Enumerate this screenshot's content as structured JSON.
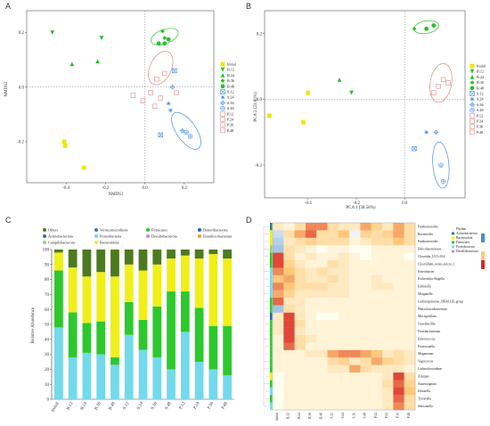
{
  "panels": {
    "A": {
      "letter": "A",
      "xlabel": "NMDS1",
      "ylabel": "NMDS2"
    },
    "B": {
      "letter": "B",
      "xlabel": "PCA 1 (38.58%)",
      "ylabel": "PCA 2 (23.80%)"
    },
    "C": {
      "letter": "C",
      "ylabel": "Relative Abundance"
    },
    "D": {
      "letter": "D"
    }
  },
  "colors": {
    "initial": "#f2e600",
    "B": "#2bbf2b",
    "S": "#4a90d9",
    "P": "#d98a8a",
    "c_others": "#4d7a20",
    "c_verruco": "#3a74b8",
    "c_firmicutes": "#2ec82e",
    "c_deferri": "#2b5cc4",
    "c_actino": "#2a7f7f",
    "c_proteo": "#74d9ea",
    "c_desulfo": "#c58ad9",
    "c_emodisc": "#e89b3a",
    "c_campy": "#9acd6a",
    "c_bacteroid": "#f0ef1a"
  },
  "group_legend": [
    {
      "label": "Initial",
      "group": "initial",
      "shape": "square"
    },
    {
      "label": "B.12",
      "group": "B",
      "shape": "tri-down"
    },
    {
      "label": "B.24",
      "group": "B",
      "shape": "tri-up"
    },
    {
      "label": "B.36",
      "group": "B",
      "shape": "diamond"
    },
    {
      "label": "B.48",
      "group": "B",
      "shape": "circle"
    },
    {
      "label": "S.12",
      "group": "S",
      "shape": "x-square"
    },
    {
      "label": "S.24",
      "group": "S",
      "shape": "asterisk"
    },
    {
      "label": "S.36",
      "group": "S",
      "shape": "diamond-plus"
    },
    {
      "label": "S.48",
      "group": "S",
      "shape": "circle-plus"
    },
    {
      "label": "P.12",
      "group": "P",
      "shape": "square-o"
    },
    {
      "label": "P.24",
      "group": "P",
      "shape": "square-o"
    },
    {
      "label": "P.36",
      "group": "P",
      "shape": "square-o"
    },
    {
      "label": "P.48",
      "group": "P",
      "shape": "square-o"
    }
  ],
  "chart_data": [
    {
      "panel": "A",
      "type": "scatter",
      "xlabel": "NMDS1",
      "ylabel": "NMDS2",
      "xlim": [
        -0.6,
        0.35
      ],
      "ylim": [
        -0.35,
        0.28
      ],
      "xticks": [
        -0.4,
        -0.2,
        0.0,
        0.2
      ],
      "yticks": [
        -0.2,
        0.0,
        0.2
      ],
      "points": [
        {
          "label": "Initial",
          "x": -0.41,
          "y": -0.2
        },
        {
          "label": "Initial",
          "x": -0.405,
          "y": -0.215
        },
        {
          "label": "Initial",
          "x": -0.31,
          "y": -0.295
        },
        {
          "label": "B.12",
          "x": -0.47,
          "y": 0.2
        },
        {
          "label": "B.12",
          "x": -0.22,
          "y": 0.18
        },
        {
          "label": "B.24",
          "x": -0.37,
          "y": 0.085
        },
        {
          "label": "B.24",
          "x": -0.24,
          "y": 0.095
        },
        {
          "label": "B.36",
          "x": 0.09,
          "y": 0.205
        },
        {
          "label": "B.36",
          "x": 0.1,
          "y": 0.18
        },
        {
          "label": "B.48",
          "x": 0.07,
          "y": 0.16
        },
        {
          "label": "B.48",
          "x": 0.1,
          "y": 0.16
        },
        {
          "label": "B.48",
          "x": 0.12,
          "y": 0.175
        },
        {
          "label": "S.12",
          "x": 0.15,
          "y": 0.06
        },
        {
          "label": "S.12",
          "x": 0.08,
          "y": -0.175
        },
        {
          "label": "S.24",
          "x": 0.13,
          "y": -0.085
        },
        {
          "label": "S.24",
          "x": 0.12,
          "y": -0.06
        },
        {
          "label": "S.36",
          "x": 0.14,
          "y": 0.0
        },
        {
          "label": "S.36",
          "x": 0.19,
          "y": -0.16
        },
        {
          "label": "S.48",
          "x": 0.21,
          "y": -0.165
        },
        {
          "label": "S.48",
          "x": 0.23,
          "y": -0.18
        },
        {
          "label": "P.12",
          "x": 0.1,
          "y": 0.05
        },
        {
          "label": "P.12",
          "x": 0.06,
          "y": 0.03
        },
        {
          "label": "P.24",
          "x": -0.06,
          "y": -0.03
        },
        {
          "label": "P.24",
          "x": -0.01,
          "y": -0.05
        },
        {
          "label": "P.36",
          "x": 0.03,
          "y": -0.02
        },
        {
          "label": "P.36",
          "x": 0.05,
          "y": -0.07
        },
        {
          "label": "P.48",
          "x": 0.08,
          "y": -0.04
        },
        {
          "label": "P.48",
          "x": 0.16,
          "y": -0.02
        }
      ]
    },
    {
      "panel": "B",
      "type": "scatter",
      "xlabel": "PCA 1 (38.58%)",
      "ylabel": "PCA 2 (23.80%)",
      "xlim": [
        -0.58,
        0.25
      ],
      "ylim": [
        -0.3,
        0.27
      ],
      "xticks": [
        -0.4,
        -0.2,
        0.0
      ],
      "yticks": [
        -0.2,
        0.0,
        0.2
      ],
      "points": [
        {
          "label": "Initial",
          "x": -0.56,
          "y": -0.05
        },
        {
          "label": "Initial",
          "x": -0.4,
          "y": 0.02
        },
        {
          "label": "Initial",
          "x": -0.42,
          "y": -0.07
        },
        {
          "label": "B.12",
          "x": -0.22,
          "y": 0.02
        },
        {
          "label": "B.24",
          "x": -0.27,
          "y": 0.06
        },
        {
          "label": "B.36",
          "x": 0.04,
          "y": 0.215
        },
        {
          "label": "B.48",
          "x": 0.09,
          "y": 0.215
        },
        {
          "label": "B.48",
          "x": 0.12,
          "y": 0.225
        },
        {
          "label": "S.12",
          "x": 0.04,
          "y": -0.15
        },
        {
          "label": "S.24",
          "x": 0.09,
          "y": -0.1
        },
        {
          "label": "S.36",
          "x": 0.13,
          "y": -0.1
        },
        {
          "label": "S.48",
          "x": 0.15,
          "y": -0.2
        },
        {
          "label": "S.48",
          "x": 0.16,
          "y": -0.25
        },
        {
          "label": "P.12",
          "x": 0.16,
          "y": 0.06
        },
        {
          "label": "P.24",
          "x": 0.14,
          "y": 0.04
        },
        {
          "label": "P.36",
          "x": 0.12,
          "y": 0.02
        },
        {
          "label": "P.48",
          "x": 0.18,
          "y": 0.05
        }
      ]
    },
    {
      "panel": "C",
      "type": "bar",
      "stacked": true,
      "ylabel": "Relative Abundance",
      "ylim": [
        0,
        100
      ],
      "yticks": [
        0,
        10,
        20,
        30,
        40,
        50,
        60,
        70,
        80,
        90,
        100
      ],
      "categories": [
        "Initial",
        "B.12",
        "B.24",
        "B.36",
        "B.48",
        "S.12",
        "S.24",
        "S.36",
        "S.48",
        "P.12",
        "P.24",
        "P.36",
        "P.48"
      ],
      "legend": [
        "Others",
        "Verrucomicrobiota",
        "Firmicutes",
        "Deferribacterota",
        "Actinobacteriota",
        "Proteobacteria",
        "Desulfobacterota",
        "Emodiscobacterota",
        "Campilobacterota",
        "Bacteroidota"
      ],
      "series": [
        {
          "name": "Proteobacteria",
          "color_key": "c_proteo",
          "values": [
            48,
            28,
            31,
            30,
            23,
            43,
            33,
            28,
            20,
            45,
            25,
            20,
            16
          ]
        },
        {
          "name": "Firmicutes",
          "color_key": "c_firmicutes",
          "values": [
            38,
            30,
            20,
            22,
            5,
            22,
            20,
            34,
            52,
            27,
            36,
            29,
            33
          ]
        },
        {
          "name": "Bacteroidota",
          "color_key": "c_bacteroid",
          "values": [
            12,
            30,
            31,
            33,
            54,
            25,
            33,
            28,
            22,
            24,
            33,
            48,
            45
          ]
        },
        {
          "name": "Others",
          "color_key": "c_others",
          "values": [
            2,
            12,
            18,
            15,
            18,
            10,
            14,
            10,
            6,
            4,
            6,
            3,
            6
          ]
        }
      ]
    },
    {
      "panel": "D",
      "type": "heatmap",
      "legend_items": [
        "Phylum",
        "Actinobacteriota",
        "Bacteroidota",
        "Firmicutes",
        "Proteobacteria",
        "Desulfobacterota"
      ],
      "columns": [
        "Initial",
        "B.12",
        "B.24",
        "B.36",
        "B.48",
        "S.12",
        "S.24",
        "S.36",
        "S.48",
        "P.12",
        "P.24",
        "P.36",
        "P.48"
      ],
      "rows": [
        "Parabacteroides",
        "Bacteroides",
        "Parabacteroides",
        "Helicobacteraceae",
        "Clostridia_UCG-014",
        "Clostridium_sensu_stricto_1",
        "Enterobacter",
        "Escherichia-Shigella",
        "Klebsiella",
        "Morganella",
        "Lachnospiraceae_NK4A136_group",
        "Phascolarctobacterium",
        "Mucispirillum",
        "Cuneibacillus",
        "Proteiniclasticum",
        "Enterococcus",
        "Proteocatella",
        "Megamonas",
        "Vagococcus",
        "Lachnoclostridium",
        "Alistipes",
        "Anaerotignum",
        "Eikenella",
        "Tyzzerella",
        "Shewanella"
      ],
      "matrix": [
        [
          0.2,
          0.1,
          0.3,
          0.7,
          0.7,
          0.3,
          0.2,
          0.2,
          0.6,
          0.4,
          0.2,
          0.6,
          0.3
        ],
        [
          -0.3,
          0.3,
          0.6,
          0.8,
          0.3,
          0.3,
          0.5,
          -0.1,
          0.4,
          0.3,
          0.4,
          0.6,
          0.3
        ],
        [
          -0.4,
          0.2,
          0.3,
          0.4,
          0.3,
          0.3,
          0.3,
          0.1,
          0.2,
          0.3,
          0.3,
          0.5,
          0.3
        ],
        [
          -0.5,
          0.3,
          0.2,
          0.1,
          0.0,
          0.1,
          0.1,
          0.0,
          0.0,
          0.1,
          0.1,
          0.1,
          0.1
        ],
        [
          0.9,
          0.3,
          0.1,
          0.2,
          0.1,
          0.1,
          0.2,
          0.1,
          0.0,
          0.1,
          0.1,
          0.1,
          0.0
        ],
        [
          0.9,
          0.4,
          0.2,
          0.1,
          0.1,
          0.3,
          0.2,
          0.1,
          0.1,
          0.1,
          0.1,
          0.1,
          0.1
        ],
        [
          0.7,
          0.5,
          0.3,
          0.2,
          0.3,
          0.2,
          0.2,
          0.1,
          0.1,
          0.1,
          0.1,
          0.1,
          0.1
        ],
        [
          0.5,
          0.6,
          0.3,
          0.2,
          0.2,
          0.3,
          0.2,
          0.1,
          0.1,
          0.2,
          0.1,
          0.1,
          0.1
        ],
        [
          0.7,
          0.5,
          0.3,
          0.3,
          0.3,
          0.2,
          0.2,
          0.1,
          0.1,
          0.2,
          0.2,
          0.1,
          0.1
        ],
        [
          0.6,
          0.4,
          0.2,
          0.2,
          0.2,
          0.2,
          0.2,
          0.1,
          0.1,
          0.1,
          0.1,
          0.1,
          0.1
        ],
        [
          0.8,
          0.2,
          0.2,
          0.1,
          0.1,
          0.1,
          0.1,
          0.1,
          0.1,
          0.1,
          0.1,
          0.1,
          0.1
        ],
        [
          -0.5,
          0.3,
          0.2,
          0.1,
          0.1,
          0.1,
          0.1,
          0.1,
          0.1,
          0.1,
          0.1,
          0.1,
          0.1
        ],
        [
          0.2,
          0.9,
          0.2,
          0.1,
          0.0,
          0.0,
          0.1,
          0.1,
          0.1,
          0.1,
          0.1,
          0.1,
          0.1
        ],
        [
          0.2,
          0.9,
          0.3,
          0.1,
          0.1,
          0.1,
          0.1,
          0.1,
          0.1,
          0.1,
          0.1,
          0.1,
          0.1
        ],
        [
          0.2,
          0.9,
          0.2,
          0.1,
          0.1,
          0.1,
          0.1,
          0.1,
          0.1,
          0.1,
          0.1,
          0.1,
          0.1
        ],
        [
          0.1,
          0.9,
          0.3,
          0.2,
          0.1,
          0.1,
          0.1,
          0.1,
          0.1,
          0.1,
          0.1,
          0.1,
          0.1
        ],
        [
          0.1,
          0.8,
          0.3,
          0.1,
          0.1,
          0.1,
          0.1,
          0.1,
          0.1,
          0.1,
          0.1,
          0.1,
          0.1
        ],
        [
          0.1,
          0.1,
          0.1,
          0.2,
          0.2,
          0.6,
          0.7,
          0.7,
          0.6,
          0.5,
          0.2,
          0.3,
          0.2
        ],
        [
          0.1,
          0.1,
          0.1,
          0.1,
          0.1,
          0.3,
          0.4,
          0.2,
          0.3,
          0.6,
          0.4,
          0.3,
          0.2
        ],
        [
          0.1,
          0.1,
          0.1,
          0.1,
          0.1,
          0.2,
          0.2,
          0.6,
          0.3,
          0.2,
          0.2,
          0.2,
          0.1
        ],
        [
          0.0,
          0.1,
          0.1,
          0.1,
          0.1,
          0.1,
          0.1,
          0.1,
          0.1,
          0.1,
          0.2,
          0.9,
          0.3
        ],
        [
          0.0,
          0.1,
          0.1,
          0.1,
          0.1,
          0.1,
          0.1,
          0.1,
          0.1,
          0.1,
          0.3,
          0.8,
          0.4
        ],
        [
          0.0,
          0.1,
          0.1,
          0.1,
          0.1,
          0.1,
          0.1,
          0.1,
          0.1,
          0.1,
          0.2,
          0.9,
          0.5
        ],
        [
          0.0,
          0.1,
          0.1,
          0.1,
          0.1,
          0.1,
          0.1,
          0.1,
          0.1,
          0.1,
          0.2,
          0.8,
          0.3
        ],
        [
          0.0,
          0.1,
          0.1,
          0.1,
          0.1,
          0.1,
          0.1,
          0.1,
          0.1,
          0.1,
          0.2,
          0.7,
          0.3
        ]
      ]
    }
  ]
}
